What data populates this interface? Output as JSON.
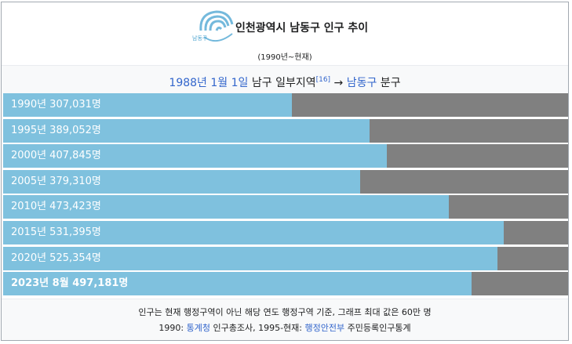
{
  "header": {
    "logo_text": "남동구",
    "title": "인천광역시 남동구 인구 추이",
    "subtitle": "(1990년~현재)"
  },
  "note": {
    "date_link": "1988년 1월 1일",
    "text_before_ref": " 남구 일부지역",
    "ref": "[16]",
    "arrow": " → ",
    "district_link": "남동구",
    "text_after": " 분구"
  },
  "colors": {
    "fill": "#7fc1de",
    "remainder": "#808080",
    "link": "#3366cc"
  },
  "chart_data": {
    "type": "bar",
    "orientation": "horizontal",
    "categories": [
      "1990년",
      "1995년",
      "2000년",
      "2005년",
      "2010년",
      "2015년",
      "2020년",
      "2023년 8월"
    ],
    "values": [
      307031,
      389052,
      407845,
      379310,
      473423,
      531395,
      525354,
      497181
    ],
    "labels": [
      "1990년 307,031명",
      "1995년 389,052명",
      "2000년 407,845명",
      "2005년 379,310명",
      "2010년 473,423명",
      "2015년 531,395명",
      "2020년 525,354명",
      "2023년 8월 497,181명"
    ],
    "bold_last": true,
    "xlim": [
      0,
      600000
    ]
  },
  "footer": {
    "line1": "인구는 현재 행정구역이 아닌 해당 연도 행정구역 기준, 그래프 최대 값은 60만 명",
    "line2_prefix": "1990: ",
    "line2_link1": "통계청",
    "line2_mid": " 인구총조사, 1995-현재: ",
    "line2_link2": "행정안전부",
    "line2_suffix": " 주민등록인구통계"
  }
}
